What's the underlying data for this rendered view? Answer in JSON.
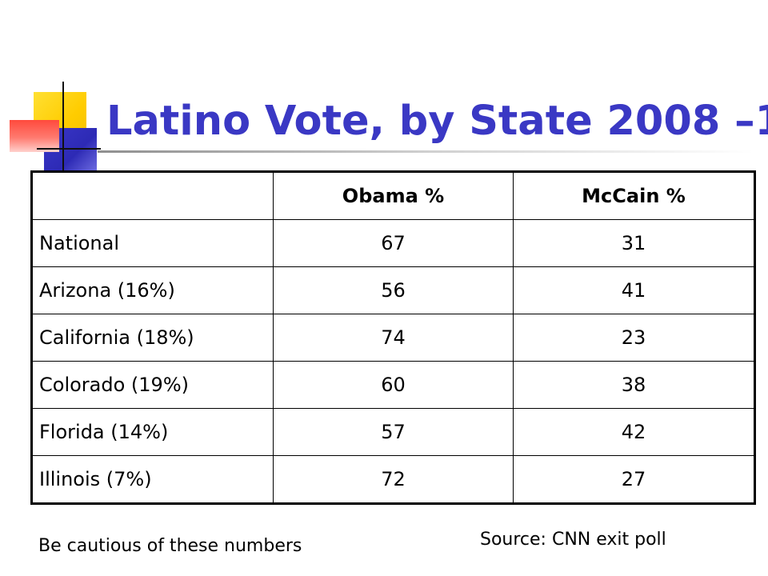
{
  "slide": {
    "title": "Latino Vote, by State 2008 –1",
    "colors": {
      "title": "#3a38c4",
      "deco_yellow": "#ffcc00",
      "deco_blue": "#2d2ab5",
      "deco_red": "#ff4a3d"
    }
  },
  "table": {
    "headers": [
      "",
      "Obama %",
      "McCain %"
    ],
    "rows": [
      [
        "National",
        "67",
        "31"
      ],
      [
        "Arizona (16%)",
        "56",
        "41"
      ],
      [
        "California (18%)",
        "74",
        "23"
      ],
      [
        "Colorado (19%)",
        "60",
        "38"
      ],
      [
        "Florida (14%)",
        "57",
        "42"
      ],
      [
        "Illinois (7%)",
        "72",
        "27"
      ]
    ]
  },
  "notes": {
    "caution": "Be cautious of these numbers",
    "source": "Source: CNN exit poll"
  }
}
